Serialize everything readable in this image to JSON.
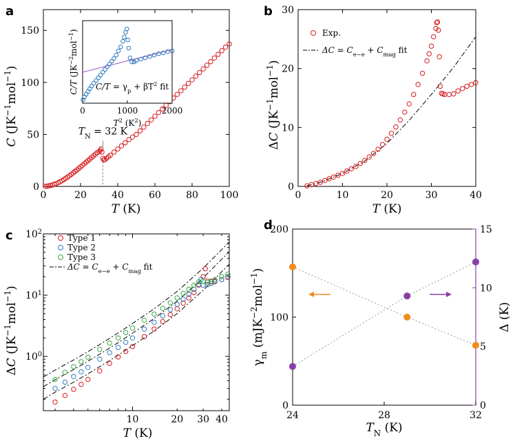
{
  "chart_data": [
    {
      "panel": "a",
      "type": "scatter",
      "xlabel": "T (K)",
      "ylabel": "C (JK⁻¹mol⁻¹)",
      "xlim": [
        0,
        100
      ],
      "ylim": [
        0,
        170
      ],
      "xticks": [
        "0",
        "20",
        "40",
        "60",
        "80",
        "100"
      ],
      "yticks": [
        "0",
        "50",
        "100",
        "150"
      ],
      "annotation": "T_N = 32 K",
      "annotation_x": 32,
      "x": [
        1,
        2,
        3,
        4,
        5,
        6,
        7,
        8,
        9,
        10,
        11,
        12,
        13,
        14,
        15,
        16,
        17,
        18,
        19,
        20,
        21,
        22,
        23,
        24,
        25,
        26,
        27,
        28,
        29,
        30,
        30.5,
        31,
        31.5,
        32,
        32.5,
        33,
        34,
        35,
        36,
        38,
        40,
        42,
        44,
        46,
        48,
        50,
        52,
        54,
        56,
        58,
        60,
        62,
        64,
        66,
        68,
        70,
        72,
        74,
        76,
        78,
        80,
        82,
        84,
        86,
        88,
        90,
        92,
        94,
        96,
        98,
        100
      ],
      "y": [
        0.1,
        0.3,
        0.6,
        1.0,
        1.5,
        2.1,
        2.8,
        3.6,
        4.5,
        5.5,
        6.6,
        7.8,
        9.0,
        10.3,
        11.6,
        13.0,
        14.4,
        15.8,
        17.3,
        18.8,
        20.3,
        21.8,
        23.3,
        24.8,
        26.3,
        27.9,
        29.5,
        31.0,
        32.5,
        33.5,
        34.5,
        36.0,
        33.0,
        27.0,
        25.5,
        25.8,
        27.0,
        28.5,
        30.0,
        33.0,
        36.0,
        39.0,
        42.0,
        45.0,
        47.5,
        50.0,
        53.5,
        57.0,
        60.5,
        64.0,
        67.5,
        71.0,
        74.5,
        78.0,
        81.5,
        85.0,
        88.5,
        92.0,
        95.5,
        99.0,
        102.5,
        106.0,
        109.5,
        113.0,
        116.5,
        120.0,
        123.5,
        127.0,
        130.5,
        134.0,
        137.0
      ],
      "inset": {
        "xlabel": "T² (K²)",
        "ylabel": "C/T (JK⁻²mol⁻¹)",
        "xticks": [
          "0",
          "1000",
          "2000"
        ],
        "xlim": [
          0,
          2000
        ],
        "ylim": [
          0,
          1.2
        ],
        "fit_label": "C/T = γp + βT² fit",
        "fit_line": {
          "intercept": 0.45,
          "slope": 0.000165
        },
        "x": [
          10,
          40,
          80,
          120,
          160,
          200,
          250,
          300,
          350,
          400,
          450,
          500,
          550,
          600,
          650,
          700,
          750,
          800,
          850,
          900,
          930,
          960,
          990,
          1010,
          1030,
          1060,
          1100,
          1150,
          1200,
          1300,
          1400,
          1500,
          1600,
          1700,
          1800,
          1900,
          2000
        ],
        "y": [
          0.05,
          0.09,
          0.13,
          0.17,
          0.21,
          0.25,
          0.29,
          0.33,
          0.37,
          0.41,
          0.45,
          0.49,
          0.53,
          0.57,
          0.61,
          0.65,
          0.7,
          0.76,
          0.82,
          0.9,
          0.96,
          1.03,
          1.08,
          0.92,
          0.8,
          0.66,
          0.6,
          0.6,
          0.62,
          0.64,
          0.66,
          0.68,
          0.7,
          0.72,
          0.73,
          0.75,
          0.76
        ]
      }
    },
    {
      "panel": "b",
      "type": "scatter",
      "xlabel": "T (K)",
      "ylabel": "ΔC (JK⁻¹mol⁻¹)",
      "xlim": [
        0,
        40
      ],
      "ylim": [
        0,
        30
      ],
      "xticks": [
        "0",
        "10",
        "20",
        "30",
        "40"
      ],
      "yticks": [
        "0",
        "10",
        "20",
        "30"
      ],
      "series": [
        {
          "name": "Exp.",
          "x": [
            2,
            3,
            4,
            5,
            6,
            7,
            8,
            9,
            10,
            11,
            12,
            13,
            14,
            15,
            16,
            17,
            18,
            19,
            20,
            21,
            22,
            23,
            24,
            25,
            26,
            27,
            28,
            29,
            29.5,
            30,
            30.5,
            31,
            31.2,
            31.4,
            31.6,
            31.8,
            32,
            32.3,
            32.6,
            33,
            34,
            35,
            36,
            37,
            38,
            39,
            40
          ],
          "y": [
            0.1,
            0.3,
            0.5,
            0.7,
            1.0,
            1.3,
            1.6,
            1.9,
            2.2,
            2.6,
            3.0,
            3.4,
            3.9,
            4.4,
            5.0,
            5.6,
            6.3,
            7.1,
            8.0,
            9.0,
            10.1,
            11.3,
            12.6,
            14.0,
            15.6,
            17.3,
            19.2,
            21.3,
            22.5,
            23.8,
            25.4,
            26.8,
            27.8,
            27.9,
            26.5,
            22.0,
            17.0,
            15.8,
            15.7,
            15.6,
            15.6,
            15.7,
            16.2,
            16.6,
            17.0,
            17.3,
            17.6
          ]
        },
        {
          "name": "ΔC = Ce-e + Cmag fit",
          "x": [
            2,
            5,
            10,
            15,
            20,
            25,
            30,
            35,
            40
          ],
          "y": [
            0.1,
            0.7,
            2.2,
            4.3,
            7.3,
            11.2,
            15.6,
            20.2,
            25.4
          ]
        }
      ]
    },
    {
      "panel": "c",
      "type": "scatter",
      "scale": "log-log",
      "xlabel": "T (K)",
      "ylabel": "ΔC (JK⁻¹mol⁻¹)",
      "xlim": [
        2.5,
        45
      ],
      "ylim": [
        0.13,
        100
      ],
      "xticks": [
        "10",
        "20",
        "30",
        "40"
      ],
      "yticks": [
        "10⁰",
        "10¹",
        "10²"
      ],
      "series": [
        {
          "name": "Type 1",
          "x": [
            3,
            3.5,
            4,
            4.5,
            5,
            6,
            7,
            8,
            9,
            10,
            12,
            14,
            16,
            18,
            20,
            22,
            24,
            26,
            28,
            30,
            31,
            32,
            34,
            36,
            40,
            44
          ],
          "y": [
            0.18,
            0.23,
            0.29,
            0.35,
            0.42,
            0.58,
            0.77,
            0.98,
            1.2,
            1.45,
            2.1,
            2.8,
            3.7,
            4.8,
            6.0,
            7.4,
            9.0,
            11.0,
            14.5,
            20,
            27,
            17,
            16.5,
            17,
            18,
            19.5
          ]
        },
        {
          "name": "Type 2",
          "x": [
            3,
            3.5,
            4,
            4.5,
            5,
            6,
            7,
            8,
            9,
            10,
            12,
            14,
            16,
            18,
            20,
            22,
            24,
            26,
            28,
            29,
            30,
            32,
            34,
            36,
            40,
            44
          ],
          "y": [
            0.3,
            0.38,
            0.47,
            0.56,
            0.66,
            0.9,
            1.15,
            1.4,
            1.7,
            2.0,
            2.8,
            3.6,
            4.6,
            5.8,
            7.1,
            8.6,
            10.3,
            12.4,
            15,
            18,
            14.5,
            14.8,
            15.5,
            16.5,
            18,
            20
          ]
        },
        {
          "name": "Type 3",
          "x": [
            3,
            3.5,
            4,
            4.5,
            5,
            6,
            7,
            8,
            9,
            10,
            12,
            14,
            16,
            18,
            20,
            22,
            24,
            26,
            28,
            30,
            32,
            34,
            36,
            40,
            44
          ],
          "y": [
            0.42,
            0.55,
            0.68,
            0.82,
            0.97,
            1.3,
            1.65,
            2.0,
            2.45,
            2.9,
            3.9,
            4.9,
            6.1,
            7.5,
            9.0,
            10.7,
            12.5,
            14.5,
            16.5,
            17,
            16,
            17,
            18,
            20,
            22
          ]
        },
        {
          "name": "ΔC = Ce-e + Cmag fit",
          "x": [
            2.5,
            3,
            4,
            5,
            6,
            8,
            10,
            14,
            20,
            30,
            45
          ],
          "y": [
            0.2,
            0.26,
            0.38,
            0.52,
            0.68,
            1.05,
            1.5,
            2.6,
            5.0,
            12,
            32
          ]
        }
      ],
      "legend": [
        "Type 1",
        "Type 2",
        "Type 3",
        "ΔC = Ce-e + Cmag fit"
      ]
    },
    {
      "panel": "d",
      "type": "scatter",
      "xlabel": "T_N (K)",
      "ylabel_left": "γm (mJK⁻²mol⁻¹)",
      "ylabel_right": "Δ (K)",
      "xlim": [
        24,
        32
      ],
      "ylim_left": [
        0,
        200
      ],
      "ylim_right": [
        0,
        15
      ],
      "xticks": [
        "24",
        "28",
        "32"
      ],
      "yticks_left": [
        "0",
        "100",
        "200"
      ],
      "yticks_right": [
        "0",
        "5",
        "10",
        "15"
      ],
      "series": [
        {
          "name": "γm",
          "axis": "left",
          "color": "#f28c1e",
          "x": [
            24,
            29,
            32
          ],
          "y": [
            157,
            100,
            68
          ]
        },
        {
          "name": "Δ",
          "axis": "right",
          "color": "#8a3fa8",
          "x": [
            24,
            29,
            32
          ],
          "y": [
            3.3,
            9.3,
            12.2
          ]
        }
      ]
    }
  ],
  "labels": {
    "a": "a",
    "b": "b",
    "c": "c",
    "d": "d"
  },
  "colors": {
    "red": "#d7191c",
    "blue": "#2f7bbf",
    "green": "#39a845",
    "orange": "#f28c1e",
    "purple": "#8a3fa8",
    "fit_purple": "#9b4dbf"
  }
}
